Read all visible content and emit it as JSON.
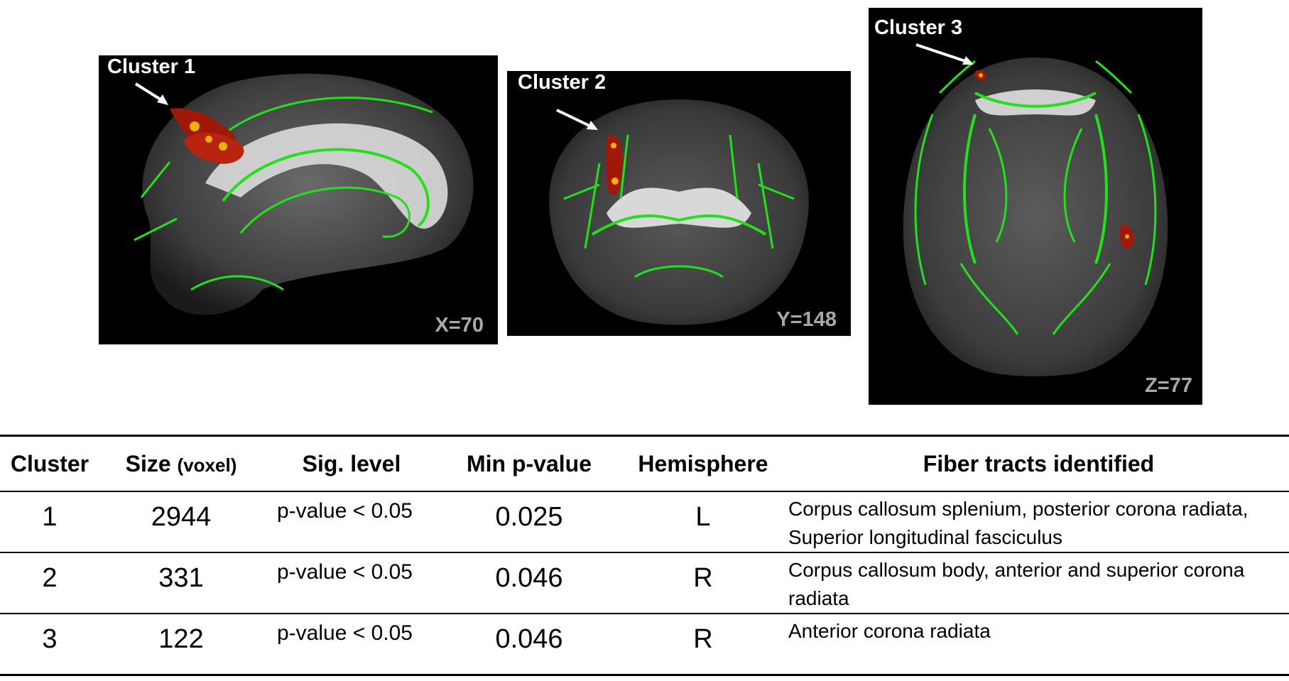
{
  "panels": [
    {
      "cluster_label": "Cluster 1",
      "coord": "X=70"
    },
    {
      "cluster_label": "Cluster 2",
      "coord": "Y=148"
    },
    {
      "cluster_label": "Cluster 3",
      "coord": "Z=77"
    }
  ],
  "colors": {
    "tract": "#22e01a",
    "cluster": "#a01808",
    "cluster_core": "#f0b000",
    "background": "#000000"
  },
  "table": {
    "headers": {
      "cluster": "Cluster",
      "size": "Size",
      "size_unit": "(voxel)",
      "sig": "Sig. level",
      "minp": "Min p-value",
      "hemisphere": "Hemisphere",
      "fiber": "Fiber tracts identified"
    },
    "rows": [
      {
        "cluster": "1",
        "size": "2944",
        "sig": "p-value < 0.05",
        "minp": "0.025",
        "hemisphere": "L",
        "fiber": "Corpus callosum splenium, posterior  corona radiata, Superior longitudinal fasciculus"
      },
      {
        "cluster": "2",
        "size": "331",
        "sig": "p-value < 0.05",
        "minp": "0.046",
        "hemisphere": "R",
        "fiber": "Corpus callosum body, anterior and superior corona radiata"
      },
      {
        "cluster": "3",
        "size": "122",
        "sig": "p-value < 0.05",
        "minp": "0.046",
        "hemisphere": "R",
        "fiber": "Anterior corona radiata"
      }
    ]
  }
}
